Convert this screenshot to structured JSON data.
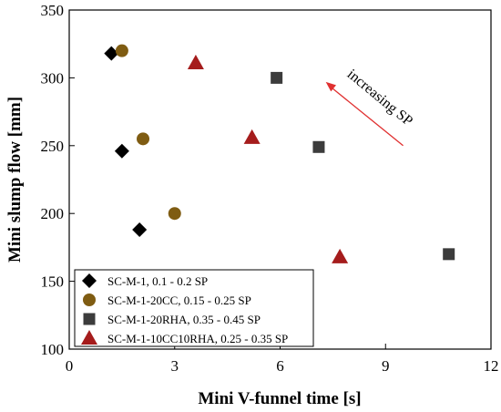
{
  "chart_data": {
    "type": "scatter",
    "xlabel": "Mini V-funnel time [s]",
    "ylabel": "Mini slump flow [mm]",
    "xlim": [
      0,
      12
    ],
    "ylim": [
      100,
      350
    ],
    "xticks": [
      0,
      3,
      6,
      9,
      12
    ],
    "yticks": [
      100,
      150,
      200,
      250,
      300,
      350
    ],
    "xtick_labels": [
      "0",
      "3",
      "6",
      "9",
      "12"
    ],
    "ytick_labels": [
      "100",
      "150",
      "200",
      "250",
      "300",
      "350"
    ],
    "grid": false,
    "legend_position": "bottom-left",
    "series": [
      {
        "name": "SC-M-1, 0.1 - 0.2 SP",
        "marker": "diamond",
        "color": "#000000",
        "points": [
          [
            1.2,
            318
          ],
          [
            1.5,
            246
          ],
          [
            2.0,
            188
          ]
        ]
      },
      {
        "name": "SC-M-1-20CC, 0.15 - 0.25 SP",
        "marker": "circle",
        "color": "#7f5c12",
        "points": [
          [
            1.5,
            320
          ],
          [
            2.1,
            255
          ],
          [
            3.0,
            200
          ]
        ]
      },
      {
        "name": "SC-M-1-20RHA, 0.35 - 0.45 SP",
        "marker": "square",
        "color": "#3c3c3c",
        "points": [
          [
            5.9,
            300
          ],
          [
            7.1,
            249
          ],
          [
            10.8,
            170
          ]
        ]
      },
      {
        "name": "SC-M-1-10CC10RHA, 0.25 - 0.35 SP",
        "marker": "triangle",
        "color": "#a51c1c",
        "points": [
          [
            3.6,
            311
          ],
          [
            5.2,
            256
          ],
          [
            7.7,
            168
          ]
        ]
      }
    ],
    "annotation": {
      "text": "increasing SP",
      "arrow_color": "#e03030",
      "arrow_from": [
        9.5,
        250
      ],
      "arrow_to": [
        7.3,
        297
      ]
    }
  }
}
